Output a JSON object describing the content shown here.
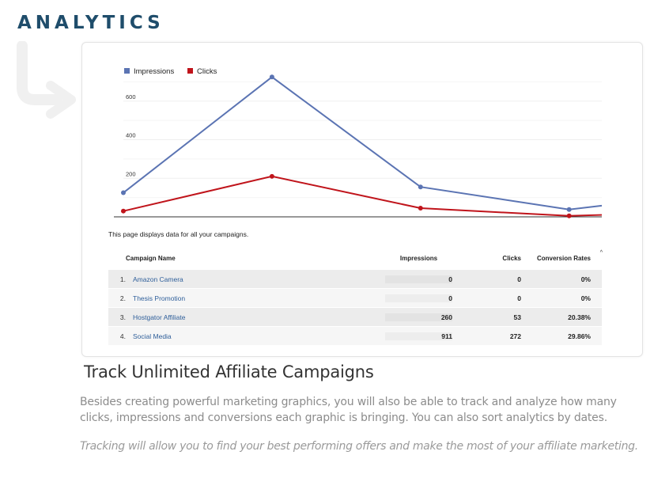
{
  "page": {
    "heading": "ANALYTICS",
    "title": "Track Unlimited Affiliate Campaigns",
    "description": "Besides creating powerful marketing graphics, you will also be able to track and analyze how many clicks, impressions and conversions each graphic is bringing. You can also sort analytics by dates.",
    "note": "Tracking will allow you to find your best performing offers and make the most of your affiliate marketing.",
    "arrow_icon": "curved-arrow-icon"
  },
  "dashboard": {
    "display_note": "This page displays data for all your campaigns.",
    "scroll_marker": "^",
    "table": {
      "headers": {
        "name": "Campaign Name",
        "impressions": "Impressions",
        "clicks": "Clicks",
        "conversion": "Conversion Rates"
      },
      "rows": [
        {
          "index": "1.",
          "name": "Amazon Camera",
          "impressions": "0",
          "clicks": "0",
          "conversion": "0%"
        },
        {
          "index": "2.",
          "name": "Thesis Promotion",
          "impressions": "0",
          "clicks": "0",
          "conversion": "0%"
        },
        {
          "index": "3.",
          "name": "Hostgator Affiliate",
          "impressions": "260",
          "clicks": "53",
          "conversion": "20.38%"
        },
        {
          "index": "4.",
          "name": "Social Media",
          "impressions": "911",
          "clicks": "272",
          "conversion": "29.86%"
        }
      ]
    }
  },
  "chart_data": {
    "type": "line",
    "x": [
      0,
      1,
      2,
      3,
      3.22
    ],
    "series": [
      {
        "name": "Impressions",
        "color": "#5b74b3",
        "values": [
          125,
          725,
          155,
          38,
          58
        ]
      },
      {
        "name": "Clicks",
        "color": "#c0141b",
        "values": [
          30,
          210,
          45,
          5,
          10
        ]
      }
    ],
    "yticks": [
      "200",
      "400",
      "600"
    ],
    "ytick_values": [
      200,
      400,
      600
    ],
    "ylim": [
      0,
      800
    ],
    "grid": true,
    "legend": "top-left"
  }
}
